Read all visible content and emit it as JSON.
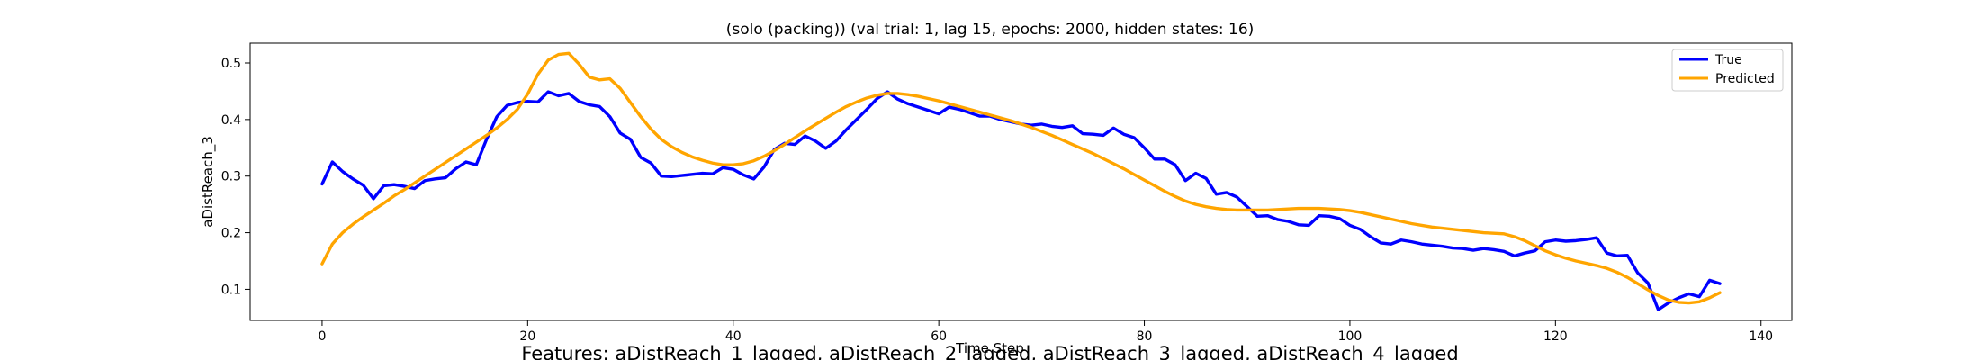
{
  "chart_data": {
    "type": "line",
    "title": "(solo (packing)) (val trial: 1, lag 15, epochs: 2000, hidden states: 16)",
    "xlabel": "Time Step",
    "ylabel": "aDistReach_3",
    "xlim": [
      -7,
      143
    ],
    "ylim": [
      0.045,
      0.535
    ],
    "xticks": [
      0,
      20,
      40,
      60,
      80,
      100,
      120,
      140
    ],
    "yticks": [
      0.1,
      0.2,
      0.3,
      0.4,
      0.5
    ],
    "grid": false,
    "legend_position": "top-right",
    "footer": "Features: aDistReach_1_lagged, aDistReach_2_lagged, aDistReach_3_lagged, aDistReach_4_lagged",
    "series": [
      {
        "name": "True",
        "color": "#0000ff",
        "values": [
          0.286,
          0.325,
          0.308,
          0.295,
          0.284,
          0.26,
          0.283,
          0.285,
          0.282,
          0.278,
          0.292,
          0.295,
          0.297,
          0.313,
          0.325,
          0.32,
          0.365,
          0.405,
          0.425,
          0.43,
          0.432,
          0.431,
          0.449,
          0.442,
          0.446,
          0.432,
          0.426,
          0.423,
          0.405,
          0.376,
          0.365,
          0.333,
          0.323,
          0.3,
          0.299,
          0.301,
          0.303,
          0.305,
          0.304,
          0.315,
          0.312,
          0.302,
          0.295,
          0.316,
          0.347,
          0.358,
          0.356,
          0.371,
          0.362,
          0.349,
          0.362,
          0.382,
          0.4,
          0.418,
          0.437,
          0.449,
          0.436,
          0.428,
          0.422,
          0.416,
          0.41,
          0.422,
          0.418,
          0.412,
          0.406,
          0.406,
          0.4,
          0.396,
          0.392,
          0.39,
          0.392,
          0.388,
          0.386,
          0.389,
          0.375,
          0.374,
          0.372,
          0.385,
          0.374,
          0.368,
          0.35,
          0.33,
          0.33,
          0.32,
          0.292,
          0.305,
          0.296,
          0.268,
          0.271,
          0.263,
          0.246,
          0.229,
          0.23,
          0.223,
          0.22,
          0.214,
          0.213,
          0.23,
          0.229,
          0.225,
          0.213,
          0.206,
          0.193,
          0.182,
          0.18,
          0.187,
          0.184,
          0.18,
          0.178,
          0.176,
          0.173,
          0.172,
          0.169,
          0.172,
          0.17,
          0.167,
          0.159,
          0.164,
          0.168,
          0.184,
          0.187,
          0.185,
          0.186,
          0.188,
          0.191,
          0.164,
          0.159,
          0.16,
          0.129,
          0.111,
          0.064,
          0.076,
          0.085,
          0.092,
          0.087,
          0.116,
          0.11
        ]
      },
      {
        "name": "Predicted",
        "color": "#ffa500",
        "values": [
          0.145,
          0.18,
          0.2,
          0.215,
          0.228,
          0.24,
          0.252,
          0.265,
          0.276,
          0.288,
          0.3,
          0.312,
          0.324,
          0.336,
          0.348,
          0.36,
          0.372,
          0.385,
          0.4,
          0.418,
          0.445,
          0.48,
          0.505,
          0.515,
          0.517,
          0.498,
          0.475,
          0.47,
          0.472,
          0.455,
          0.43,
          0.405,
          0.383,
          0.365,
          0.352,
          0.342,
          0.334,
          0.328,
          0.323,
          0.32,
          0.32,
          0.322,
          0.327,
          0.335,
          0.345,
          0.356,
          0.368,
          0.38,
          0.391,
          0.402,
          0.413,
          0.423,
          0.431,
          0.438,
          0.443,
          0.446,
          0.446,
          0.444,
          0.441,
          0.437,
          0.433,
          0.428,
          0.423,
          0.418,
          0.413,
          0.408,
          0.403,
          0.398,
          0.392,
          0.386,
          0.379,
          0.372,
          0.364,
          0.356,
          0.348,
          0.34,
          0.331,
          0.322,
          0.313,
          0.303,
          0.293,
          0.283,
          0.273,
          0.264,
          0.256,
          0.25,
          0.246,
          0.243,
          0.241,
          0.24,
          0.24,
          0.24,
          0.24,
          0.241,
          0.242,
          0.243,
          0.243,
          0.243,
          0.242,
          0.241,
          0.239,
          0.236,
          0.232,
          0.228,
          0.224,
          0.22,
          0.216,
          0.213,
          0.21,
          0.208,
          0.206,
          0.204,
          0.202,
          0.2,
          0.199,
          0.198,
          0.193,
          0.186,
          0.177,
          0.168,
          0.161,
          0.155,
          0.15,
          0.146,
          0.142,
          0.137,
          0.13,
          0.121,
          0.11,
          0.099,
          0.089,
          0.081,
          0.077,
          0.076,
          0.078,
          0.085,
          0.094
        ]
      }
    ]
  }
}
